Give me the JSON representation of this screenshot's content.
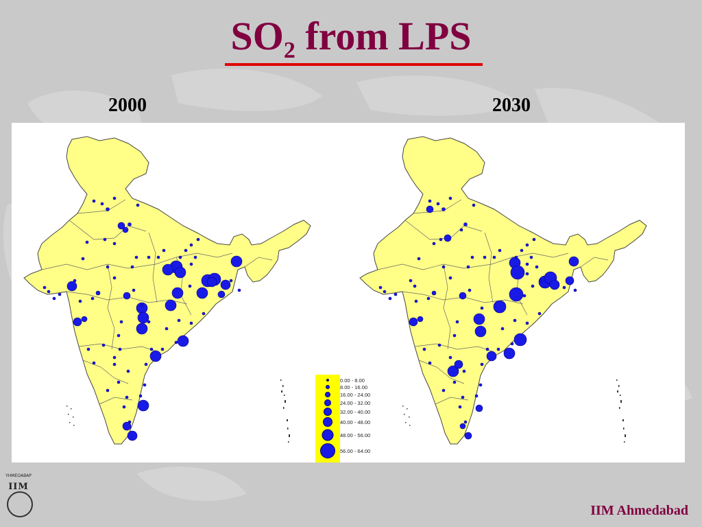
{
  "slide": {
    "title_main": "SO",
    "title_sub": "2",
    "title_rest": " from LPS",
    "footer": "IIM Ahmedabad",
    "logo_text": "ΥΗΜΕΟΑΒΑΡ",
    "logo_mark": "IIM"
  },
  "maps": [
    {
      "year": "2000"
    },
    {
      "year": "2030"
    }
  ],
  "legend": {
    "title": "",
    "classes": [
      {
        "label": "0.00 - 8.00"
      },
      {
        "label": "8.00 - 16.00"
      },
      {
        "label": "16.00 - 24.00"
      },
      {
        "label": "24.00 - 32.00"
      },
      {
        "label": "32.00 - 40.00"
      },
      {
        "label": "40.00 - 48.00"
      },
      {
        "label": "48.00 - 56.00"
      },
      {
        "label": "56.00 - 64.00"
      }
    ]
  },
  "colors": {
    "land": "#ffff88",
    "border": "#444444",
    "point": "#1a1ae6",
    "point_stroke": "#000080",
    "title": "#800040",
    "rule": "#e00000",
    "legend_bg": "#ffff00"
  }
}
